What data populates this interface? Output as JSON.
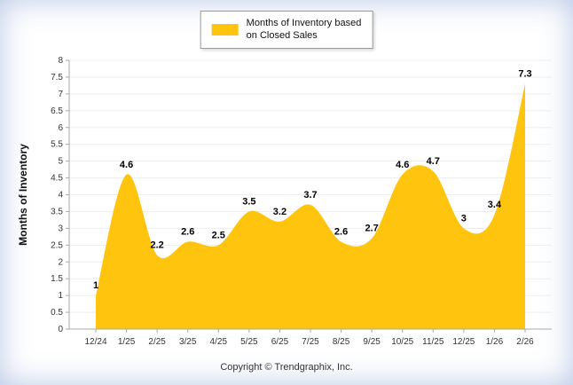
{
  "page": {
    "footer": "Copyright © Trendgraphix, Inc."
  },
  "legend": {
    "label_line1": "Months of Inventory based",
    "label_line2": "on Closed Sales"
  },
  "chart_data": {
    "type": "area",
    "title": "",
    "series_name": "Months of Inventory based on Closed Sales",
    "categories": [
      "12/24",
      "1/25",
      "2/25",
      "3/25",
      "4/25",
      "5/25",
      "6/25",
      "7/25",
      "8/25",
      "9/25",
      "10/25",
      "11/25",
      "12/25",
      "1/26",
      "2/26"
    ],
    "values": [
      1,
      4.6,
      2.2,
      2.6,
      2.5,
      3.5,
      3.2,
      3.7,
      2.6,
      2.7,
      4.6,
      4.7,
      3,
      3.4,
      7.3
    ],
    "xlabel": "",
    "ylabel": "Months of Inventory",
    "ylim": [
      0,
      8
    ],
    "ytick_step": 0.5,
    "grid": true,
    "legend_position": "top",
    "fill_color": "#FFC40D",
    "axis_color": "#aaaaaa",
    "grid_color": "#ededed",
    "tick_label_color": "#333333",
    "point_label_color": "#000000"
  }
}
